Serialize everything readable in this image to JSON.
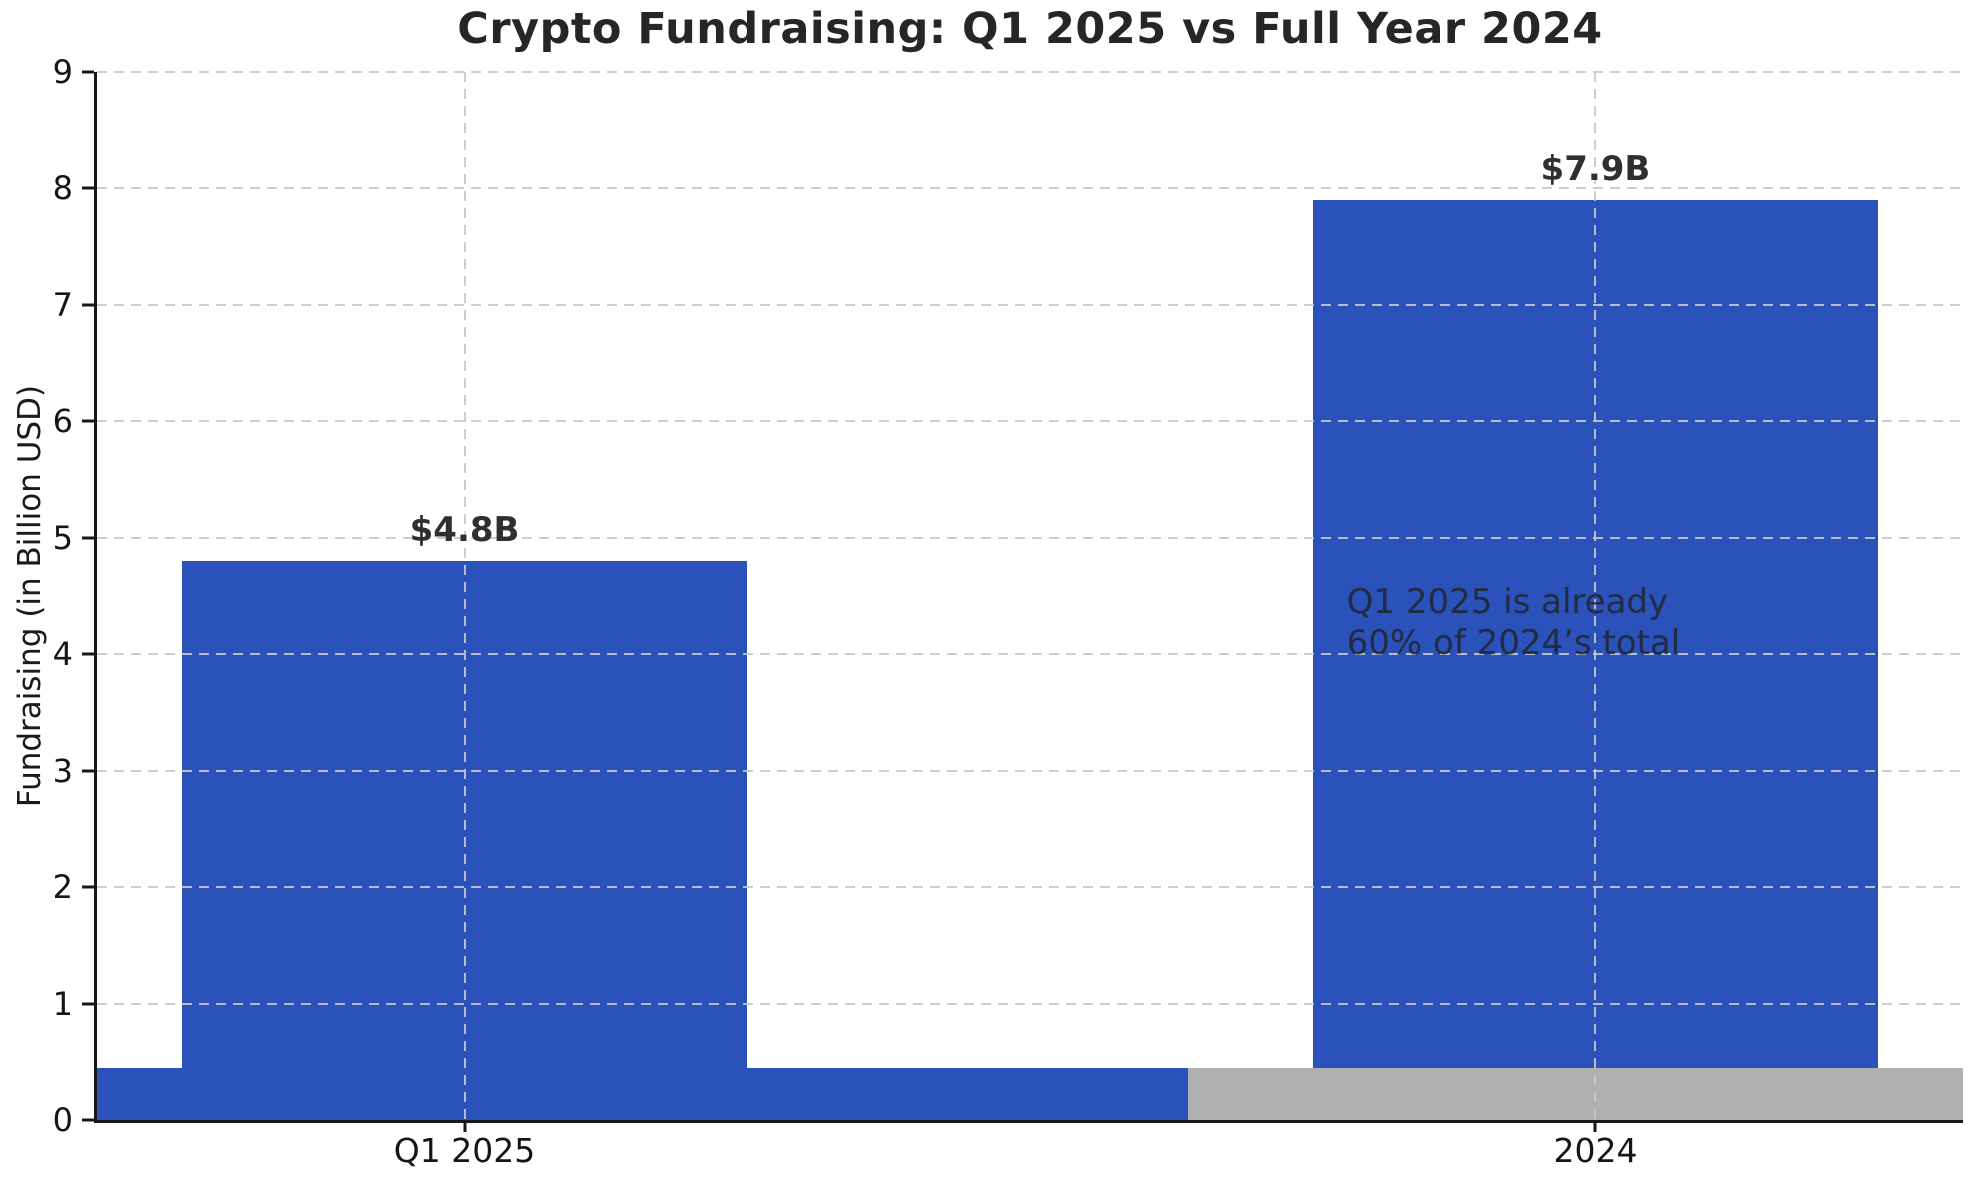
{
  "chart_data": {
    "type": "bar",
    "title": "Crypto Fundraising: Q1 2025 vs Full Year 2024",
    "ylabel": "Fundraising (in Billion USD)",
    "xlabel": "",
    "categories": [
      "Q1 2025",
      "2024"
    ],
    "values": [
      4.8,
      7.9
    ],
    "bar_labels": [
      "$4.8B",
      "$7.9B"
    ],
    "ylim": [
      0,
      9
    ],
    "yticks": [
      0,
      1,
      2,
      3,
      4,
      5,
      6,
      7,
      8,
      9
    ],
    "xlim": [
      -0.325,
      1.325
    ],
    "bar_width": 0.5,
    "grid": {
      "style": "dashed",
      "color": "#c9c9c9",
      "drawn_above_bars": true
    },
    "legend": "none",
    "annotation": {
      "lines": [
        "Q1 2025 is already",
        "60% of 2024’s total"
      ],
      "x": 0.78,
      "y": 4.62
    },
    "baseline_strip": {
      "height": 0.45,
      "split_x": 0.64,
      "left_color": "#2b51ba",
      "right_color": "#b0b0b0"
    },
    "colors": {
      "bar": "#2b51ba",
      "bar_label_text": "#2f2f2f",
      "annotation_text": "#20242a",
      "axis_text": "#151515",
      "title_text": "#262626"
    }
  }
}
